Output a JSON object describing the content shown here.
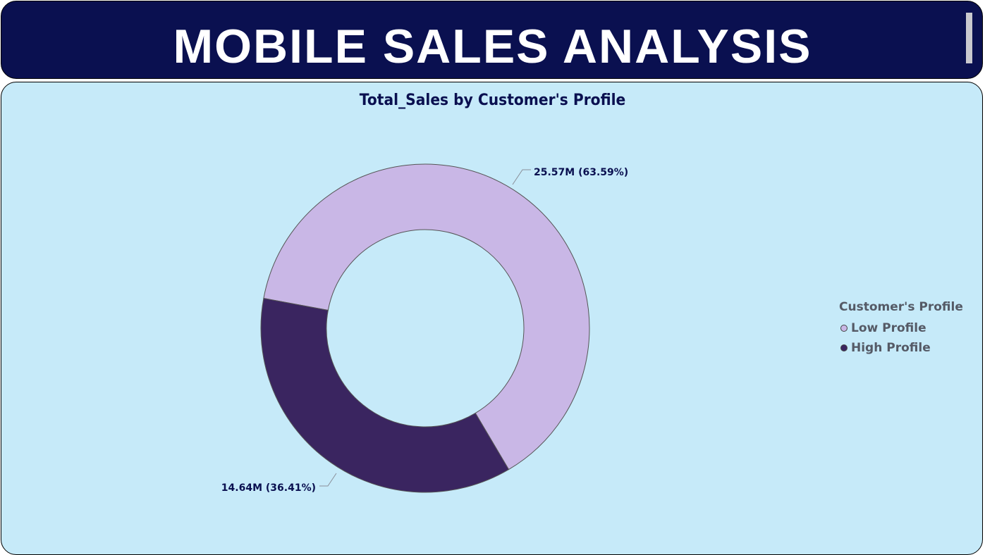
{
  "header": {
    "title": "MOBILE SALES ANALYSIS"
  },
  "colors": {
    "header_bg": "#0a1050",
    "panel_bg": "#c6eaf9",
    "low_profile": "#c9b7e6",
    "high_profile": "#3a2560"
  },
  "chart_data": {
    "type": "pie",
    "variant": "donut",
    "title": "Total_Sales by Customer's Profile",
    "legend_title": "Customer's Profile",
    "legend_position": "right",
    "series": [
      {
        "name": "Low Profile",
        "value_millions": 25.57,
        "percent": 63.59,
        "label": "25.57M (63.59%)",
        "color": "#c9b7e6"
      },
      {
        "name": "High Profile",
        "value_millions": 14.64,
        "percent": 36.41,
        "label": "14.64M (36.41%)",
        "color": "#3a2560"
      }
    ]
  }
}
